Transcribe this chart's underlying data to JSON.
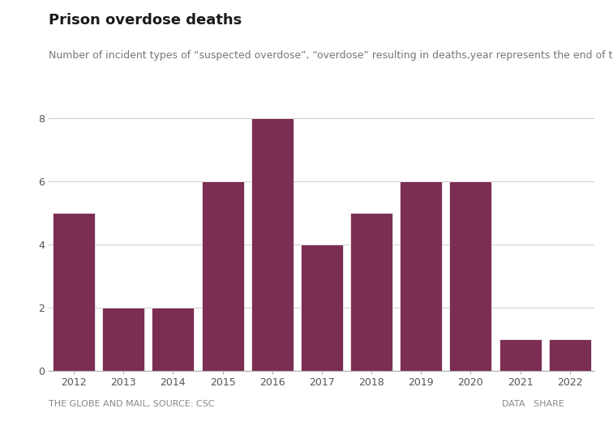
{
  "title": "Prison overdose deaths",
  "subtitle": "Number of incident types of “suspected overdose”, “overdose” resulting in deaths,year represents the end of the fiscal.",
  "years": [
    2012,
    2013,
    2014,
    2015,
    2016,
    2017,
    2018,
    2019,
    2020,
    2021,
    2022
  ],
  "values": [
    5,
    2,
    2,
    6,
    8,
    4,
    5,
    6,
    6,
    1,
    1
  ],
  "bar_color": "#7B2D52",
  "background_color": "#ffffff",
  "ylim": [
    0,
    8
  ],
  "yticks": [
    0,
    2,
    4,
    6,
    8
  ],
  "footer_left": "THE GLOBE AND MAIL, SOURCE: CSC",
  "footer_right": "DATA   SHARE",
  "title_fontsize": 13,
  "subtitle_fontsize": 9,
  "axis_label_fontsize": 9,
  "footer_fontsize": 8
}
